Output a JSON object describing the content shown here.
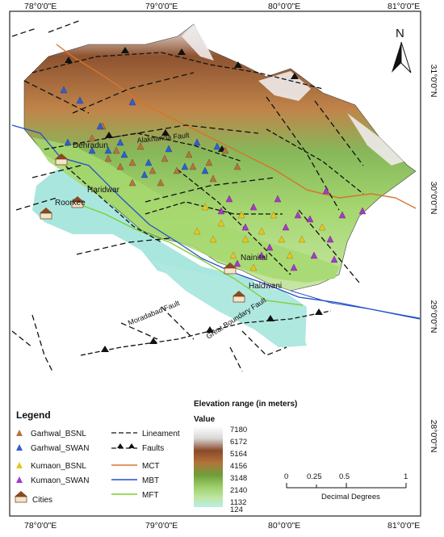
{
  "coordinates": {
    "top": [
      "78°0'0\"E",
      "79°0'0\"E",
      "80°0'0\"E",
      "81°0'0\"E"
    ],
    "bottom": [
      "78°0'0\"E",
      "79°0'0\"E",
      "80°0'0\"E",
      "81°0'0\"E"
    ],
    "right": [
      "31°0'0\"N",
      "30°0'0\"N",
      "29°0'0\"N",
      "28°0'0\"N"
    ]
  },
  "north_arrow": "N",
  "cities": [
    "Dehradun",
    "Haridwar",
    "Roorkee",
    "Nainital",
    "Haldwani"
  ],
  "fault_labels": [
    "Alaknanda Fault",
    "Moradabad Fault",
    "Great Boundary Fault"
  ],
  "legend": {
    "title": "Legend",
    "items": [
      {
        "label": "Garhwal_BSNL",
        "color": "#b7733f"
      },
      {
        "label": "Garhwal_SWAN",
        "color": "#2f5fd4"
      },
      {
        "label": "Kumaon_BSNL",
        "color": "#e6c622"
      },
      {
        "label": "Kumaon_SWAN",
        "color": "#a63bc4"
      },
      {
        "label": "Cities",
        "icon": "city-hut-icon"
      }
    ],
    "lines": [
      {
        "label": "Lineament",
        "style": "dashed"
      },
      {
        "label": "Faults",
        "style": "dashed-triangles"
      },
      {
        "label": "MCT",
        "color": "#d8742a"
      },
      {
        "label": "MBT",
        "color": "#2350c8"
      },
      {
        "label": "MFT",
        "color": "#7ccf28"
      }
    ]
  },
  "elevation": {
    "title": "Elevation range (in meters)",
    "value_label": "Value",
    "ticks": [
      "7180",
      "6172",
      "5164",
      "4156",
      "3148",
      "2140",
      "1132",
      "124"
    ]
  },
  "scale_bar": {
    "ticks": [
      "0",
      "0.25",
      "0.5",
      "1"
    ],
    "unit": "Decimal Degrees"
  },
  "colors": {
    "plains": "#a8e6df",
    "lowland_green": "#8fcf72",
    "midland_green": "#bfe089",
    "highland_brown": "#8a4f2a",
    "snow": "#f4f2f3"
  }
}
